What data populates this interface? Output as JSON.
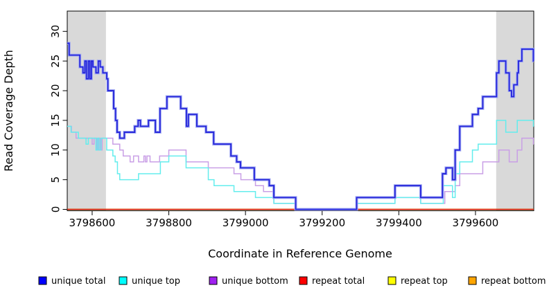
{
  "chart_data": {
    "type": "line",
    "step": true,
    "title": "",
    "xlabel": "Coordinate in Reference Genome",
    "ylabel": "Read Coverage Depth",
    "xlim": [
      3798535,
      3799752
    ],
    "ylim": [
      0,
      33
    ],
    "x_ticks": [
      3798600,
      3798800,
      3799000,
      3799200,
      3799400,
      3799600
    ],
    "y_ticks": [
      0,
      5,
      10,
      15,
      20,
      25,
      30
    ],
    "grid": false,
    "legend_position": "bottom",
    "background_color": "#ffffff",
    "shaded_regions": [
      {
        "name": "masked-region-left",
        "x0": 3798535,
        "x1": 3798636,
        "color": "#d9d9d9"
      },
      {
        "name": "masked-region-right",
        "x0": 3799654,
        "x1": 3799752,
        "color": "#d9d9d9"
      }
    ],
    "series": [
      {
        "name": "unique-total",
        "legend_label": "unique total",
        "legend_color": "#0000ff",
        "line_color": "#2323da",
        "halo_color": "#a3abf2",
        "line_width": 1.8,
        "points": [
          [
            3798535,
            28
          ],
          [
            3798540,
            26
          ],
          [
            3798568,
            24
          ],
          [
            3798576,
            23
          ],
          [
            3798581,
            25
          ],
          [
            3798585,
            22
          ],
          [
            3798590,
            25
          ],
          [
            3798594,
            22
          ],
          [
            3798598,
            25
          ],
          [
            3798602,
            24
          ],
          [
            3798610,
            23
          ],
          [
            3798616,
            25
          ],
          [
            3798621,
            24
          ],
          [
            3798628,
            23
          ],
          [
            3798638,
            22
          ],
          [
            3798641,
            20
          ],
          [
            3798656,
            17
          ],
          [
            3798661,
            15
          ],
          [
            3798665,
            13
          ],
          [
            3798672,
            12
          ],
          [
            3798684,
            13
          ],
          [
            3798711,
            14
          ],
          [
            3798720,
            15
          ],
          [
            3798726,
            14
          ],
          [
            3798747,
            15
          ],
          [
            3798765,
            13
          ],
          [
            3798777,
            17
          ],
          [
            3798795,
            19
          ],
          [
            3798831,
            17
          ],
          [
            3798846,
            14
          ],
          [
            3798851,
            16
          ],
          [
            3798873,
            14
          ],
          [
            3798897,
            13
          ],
          [
            3798917,
            11
          ],
          [
            3798962,
            9
          ],
          [
            3798977,
            8
          ],
          [
            3798987,
            7
          ],
          [
            3799023,
            5
          ],
          [
            3799062,
            4
          ],
          [
            3799074,
            2
          ],
          [
            3799131,
            0
          ],
          [
            3799290,
            2
          ],
          [
            3799390,
            4
          ],
          [
            3799457,
            2
          ],
          [
            3799514,
            6
          ],
          [
            3799523,
            7
          ],
          [
            3799540,
            5
          ],
          [
            3799547,
            10
          ],
          [
            3799559,
            14
          ],
          [
            3799592,
            16
          ],
          [
            3799607,
            17
          ],
          [
            3799619,
            19
          ],
          [
            3799655,
            23
          ],
          [
            3799661,
            25
          ],
          [
            3799679,
            23
          ],
          [
            3799688,
            20
          ],
          [
            3799694,
            19
          ],
          [
            3799700,
            21
          ],
          [
            3799709,
            23
          ],
          [
            3799712,
            25
          ],
          [
            3799721,
            27
          ],
          [
            3799751,
            25
          ],
          [
            3799752,
            25
          ]
        ]
      },
      {
        "name": "unique-top",
        "legend_label": "unique top",
        "legend_color": "#00ffff",
        "line_color": "#63eded",
        "line_width": 1.5,
        "points": [
          [
            3798535,
            14
          ],
          [
            3798545,
            13
          ],
          [
            3798564,
            12
          ],
          [
            3798584,
            11
          ],
          [
            3798590,
            12
          ],
          [
            3798610,
            10
          ],
          [
            3798614,
            12
          ],
          [
            3798618,
            10
          ],
          [
            3798623,
            12
          ],
          [
            3798638,
            10
          ],
          [
            3798654,
            9
          ],
          [
            3798660,
            8
          ],
          [
            3798666,
            6
          ],
          [
            3798672,
            5
          ],
          [
            3798721,
            6
          ],
          [
            3798778,
            8
          ],
          [
            3798800,
            9
          ],
          [
            3798845,
            7
          ],
          [
            3798903,
            5
          ],
          [
            3798918,
            4
          ],
          [
            3798970,
            3
          ],
          [
            3799026,
            2
          ],
          [
            3799074,
            1
          ],
          [
            3799131,
            0
          ],
          [
            3799290,
            1
          ],
          [
            3799390,
            2
          ],
          [
            3799457,
            1
          ],
          [
            3799516,
            4
          ],
          [
            3799540,
            2
          ],
          [
            3799547,
            6
          ],
          [
            3799559,
            8
          ],
          [
            3799592,
            10
          ],
          [
            3799607,
            11
          ],
          [
            3799655,
            15
          ],
          [
            3799679,
            13
          ],
          [
            3799709,
            15
          ],
          [
            3799751,
            14
          ],
          [
            3799752,
            14
          ]
        ]
      },
      {
        "name": "unique-bottom",
        "legend_label": "unique bottom",
        "legend_color": "#a020f0",
        "line_color": "#c99fe6",
        "line_width": 1.5,
        "points": [
          [
            3798535,
            14
          ],
          [
            3798546,
            13
          ],
          [
            3798558,
            12
          ],
          [
            3798600,
            11
          ],
          [
            3798605,
            12
          ],
          [
            3798612,
            10
          ],
          [
            3798616,
            12
          ],
          [
            3798621,
            10
          ],
          [
            3798626,
            12
          ],
          [
            3798654,
            11
          ],
          [
            3798672,
            10
          ],
          [
            3798681,
            9
          ],
          [
            3798699,
            8
          ],
          [
            3798708,
            9
          ],
          [
            3798721,
            8
          ],
          [
            3798735,
            9
          ],
          [
            3798739,
            8
          ],
          [
            3798743,
            9
          ],
          [
            3798751,
            8
          ],
          [
            3798776,
            9
          ],
          [
            3798800,
            10
          ],
          [
            3798845,
            8
          ],
          [
            3798903,
            7
          ],
          [
            3798970,
            6
          ],
          [
            3798988,
            5
          ],
          [
            3799026,
            4
          ],
          [
            3799047,
            3
          ],
          [
            3799074,
            1
          ],
          [
            3799131,
            0
          ],
          [
            3799290,
            1
          ],
          [
            3799390,
            2
          ],
          [
            3799457,
            1
          ],
          [
            3799520,
            3
          ],
          [
            3799547,
            4
          ],
          [
            3799559,
            6
          ],
          [
            3799619,
            8
          ],
          [
            3799661,
            10
          ],
          [
            3799688,
            8
          ],
          [
            3799709,
            10
          ],
          [
            3799721,
            12
          ],
          [
            3799751,
            11
          ],
          [
            3799752,
            11
          ]
        ]
      },
      {
        "name": "repeat-total",
        "legend_label": "repeat total",
        "legend_color": "#ff0000",
        "line_color": "#cc0000",
        "line_width": 1.5,
        "points": [
          [
            3798535,
            0
          ],
          [
            3799752,
            0
          ]
        ]
      },
      {
        "name": "repeat-top",
        "legend_label": "repeat top",
        "legend_color": "#ffff00",
        "line_color": "#eeee00",
        "line_width": 1.5,
        "points": [
          [
            3798535,
            0
          ],
          [
            3799752,
            0
          ]
        ]
      },
      {
        "name": "repeat-bottom",
        "legend_label": "repeat bottom",
        "legend_color": "#ffa500",
        "line_color": "#ff9d14",
        "line_width": 1.6,
        "points": [
          [
            3798535,
            0
          ],
          [
            3799752,
            0
          ]
        ]
      }
    ]
  }
}
